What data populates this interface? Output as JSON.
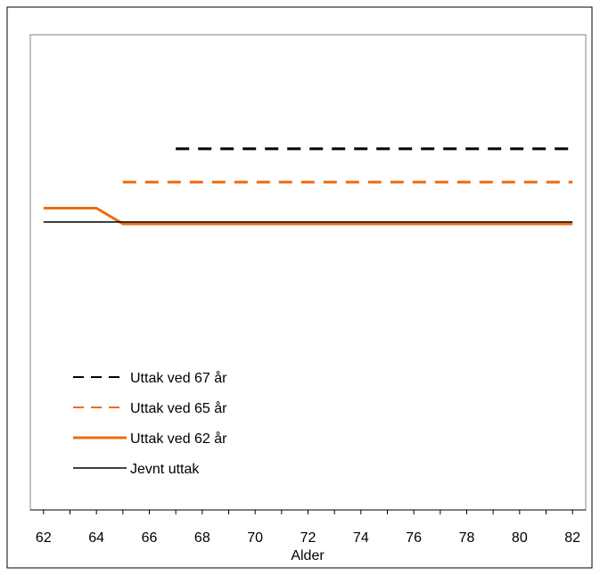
{
  "chart_data": {
    "type": "line",
    "title": "",
    "xlabel": "Alder",
    "ylabel": "",
    "xlim": [
      61.5,
      82.5
    ],
    "ylim": [
      0,
      100
    ],
    "x_ticks": [
      62,
      64,
      66,
      68,
      70,
      72,
      74,
      76,
      78,
      80,
      82
    ],
    "x_tick_labels": [
      "62",
      "64",
      "66",
      "68",
      "70",
      "72",
      "74",
      "76",
      "78",
      "80",
      "82"
    ],
    "y_axis_visible": false,
    "grid": false,
    "legend_position": "lower-left",
    "series": [
      {
        "name": "Uttak ved 67 år",
        "color": "#000000",
        "dash": "dashed",
        "width": 3,
        "x": [
          67,
          82
        ],
        "y": [
          76,
          76
        ]
      },
      {
        "name": "Uttak ved 65 år",
        "color": "#f26b0f",
        "dash": "dashed",
        "width": 3,
        "x": [
          65,
          82
        ],
        "y": [
          69,
          69
        ]
      },
      {
        "name": "Uttak ved 62 år",
        "color": "#f26b0f",
        "dash": "solid",
        "width": 3,
        "x": [
          62,
          64,
          65,
          82
        ],
        "y": [
          63.5,
          63.5,
          60.2,
          60.2
        ]
      },
      {
        "name": "Jevnt uttak",
        "color": "#000000",
        "dash": "solid",
        "width": 1.5,
        "x": [
          62,
          82
        ],
        "y": [
          60.6,
          60.6
        ]
      }
    ]
  }
}
